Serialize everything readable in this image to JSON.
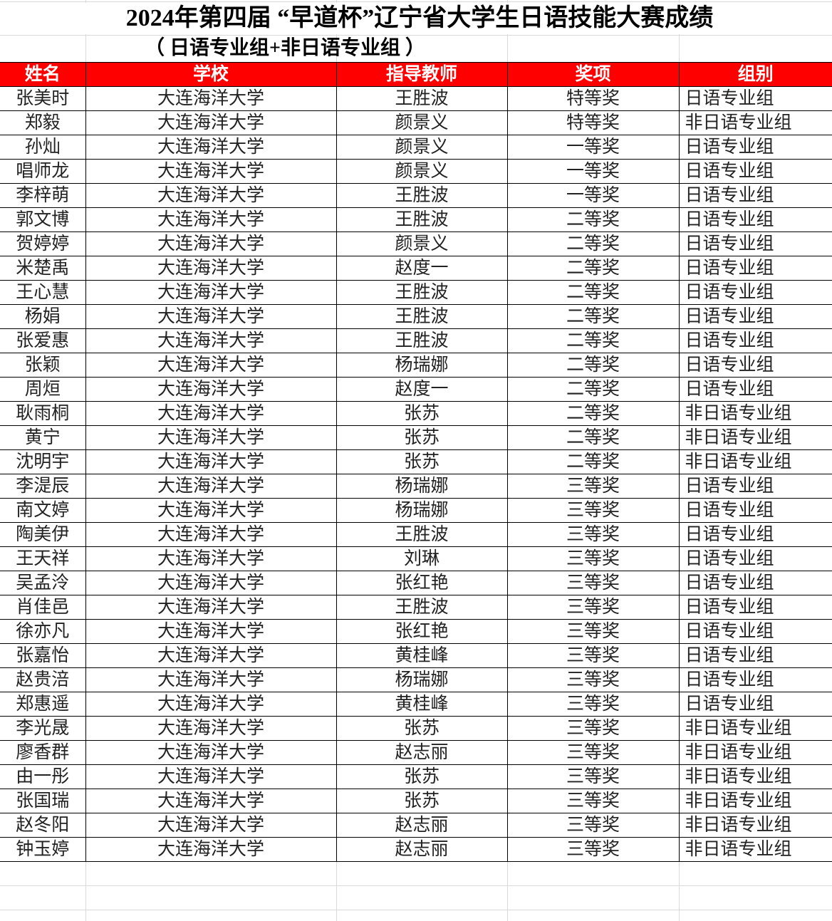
{
  "title": "2024年第四届 “早道杯”辽宁省大学生日语技能大赛成绩",
  "subtitle": "（ 日语专业组+非日语专业组 ）",
  "header": {
    "name": "姓名",
    "school": "学校",
    "teacher": "指导教师",
    "award": "奖项",
    "group": "组别"
  },
  "colors": {
    "header_bg": "#ff0000",
    "header_text": "#ffffff"
  },
  "rows": [
    [
      "张美时",
      "大连海洋大学",
      "王胜波",
      "特等奖",
      "日语专业组"
    ],
    [
      "郑毅",
      "大连海洋大学",
      "颜景义",
      "特等奖",
      "非日语专业组"
    ],
    [
      "孙灿",
      "大连海洋大学",
      "颜景义",
      "一等奖",
      "日语专业组"
    ],
    [
      "唱师龙",
      "大连海洋大学",
      "颜景义",
      "一等奖",
      "日语专业组"
    ],
    [
      "李梓萌",
      "大连海洋大学",
      "王胜波",
      "一等奖",
      "日语专业组"
    ],
    [
      "郭文博",
      "大连海洋大学",
      "王胜波",
      "二等奖",
      "日语专业组"
    ],
    [
      "贺婷婷",
      "大连海洋大学",
      "颜景义",
      "二等奖",
      "日语专业组"
    ],
    [
      "米楚禹",
      "大连海洋大学",
      "赵度一",
      "二等奖",
      "日语专业组"
    ],
    [
      "王心慧",
      "大连海洋大学",
      "王胜波",
      "二等奖",
      "日语专业组"
    ],
    [
      "杨娟",
      "大连海洋大学",
      "王胜波",
      "二等奖",
      "日语专业组"
    ],
    [
      "张爱惠",
      "大连海洋大学",
      "王胜波",
      "二等奖",
      "日语专业组"
    ],
    [
      "张颖",
      "大连海洋大学",
      "杨瑞娜",
      "二等奖",
      "日语专业组"
    ],
    [
      "周烜",
      "大连海洋大学",
      "赵度一",
      "二等奖",
      "日语专业组"
    ],
    [
      "耿雨桐",
      "大连海洋大学",
      "张苏",
      "二等奖",
      "非日语专业组"
    ],
    [
      "黄宁",
      "大连海洋大学",
      "张苏",
      "二等奖",
      "非日语专业组"
    ],
    [
      "沈明宇",
      "大连海洋大学",
      "张苏",
      "二等奖",
      "非日语专业组"
    ],
    [
      "李湜辰",
      "大连海洋大学",
      "杨瑞娜",
      "三等奖",
      "日语专业组"
    ],
    [
      "南文婷",
      "大连海洋大学",
      "杨瑞娜",
      "三等奖",
      "日语专业组"
    ],
    [
      "陶美伊",
      "大连海洋大学",
      "王胜波",
      "三等奖",
      "日语专业组"
    ],
    [
      "王天祥",
      "大连海洋大学",
      "刘琳",
      "三等奖",
      "日语专业组"
    ],
    [
      "吴孟泠",
      "大连海洋大学",
      "张红艳",
      "三等奖",
      "日语专业组"
    ],
    [
      "肖佳邑",
      "大连海洋大学",
      "王胜波",
      "三等奖",
      "日语专业组"
    ],
    [
      "徐亦凡",
      "大连海洋大学",
      "张红艳",
      "三等奖",
      "日语专业组"
    ],
    [
      "张嘉怡",
      "大连海洋大学",
      "黄桂峰",
      "三等奖",
      "日语专业组"
    ],
    [
      "赵贵涪",
      "大连海洋大学",
      "杨瑞娜",
      "三等奖",
      "日语专业组"
    ],
    [
      "郑惠遥",
      "大连海洋大学",
      "黄桂峰",
      "三等奖",
      "日语专业组"
    ],
    [
      "李光晟",
      "大连海洋大学",
      "张苏",
      "三等奖",
      "非日语专业组"
    ],
    [
      "廖香群",
      "大连海洋大学",
      "赵志丽",
      "三等奖",
      "非日语专业组"
    ],
    [
      "由一彤",
      "大连海洋大学",
      "张苏",
      "三等奖",
      "非日语专业组"
    ],
    [
      "张国瑞",
      "大连海洋大学",
      "张苏",
      "三等奖",
      "非日语专业组"
    ],
    [
      "赵冬阳",
      "大连海洋大学",
      "赵志丽",
      "三等奖",
      "非日语专业组"
    ],
    [
      "钟玉婷",
      "大连海洋大学",
      "赵志丽",
      "三等奖",
      "非日语专业组"
    ]
  ]
}
